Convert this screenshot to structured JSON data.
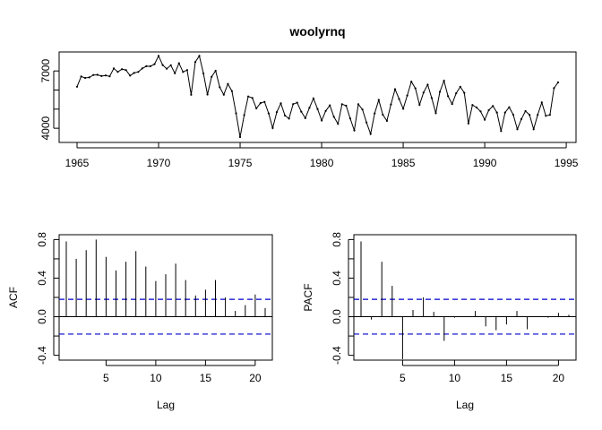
{
  "chart_data": [
    {
      "type": "line",
      "title": "woolyrnq",
      "xlabel": "",
      "ylabel": "",
      "xlim": [
        1965,
        1994.5
      ],
      "ylim": [
        3350,
        7900
      ],
      "x_ticks": [
        "1965",
        "1970",
        "1975",
        "1980",
        "1985",
        "1990",
        "1995"
      ],
      "y_ticks": [
        "4000",
        "7000"
      ],
      "grid": false,
      "legend": "none",
      "color": "#000000",
      "x_start": 1965,
      "frequency": 4,
      "values": [
        6172,
        6709,
        6633,
        6660,
        6786,
        6800,
        6730,
        6765,
        6720,
        7133,
        6946,
        7095,
        7047,
        6757,
        6898,
        6949,
        7131,
        7249,
        7245,
        7354,
        7788,
        7309,
        7118,
        7294,
        6876,
        7402,
        6948,
        7045,
        5750,
        7468,
        7789,
        6868,
        5765,
        6693,
        7010,
        6144,
        5755,
        6318,
        5946,
        4779,
        3537,
        4686,
        5664,
        5582,
        5037,
        5314,
        5380,
        4775,
        4013,
        4845,
        5305,
        4664,
        4505,
        5262,
        5339,
        4871,
        4527,
        5067,
        5566,
        5006,
        4407,
        4908,
        5200,
        4600,
        4228,
        5260,
        5180,
        4515,
        3886,
        5255,
        4982,
        4300,
        3700,
        4775,
        5478,
        4712,
        4386,
        5245,
        6041,
        5530,
        5019,
        5713,
        6441,
        6089,
        5227,
        5869,
        6280,
        5585,
        4786,
        5906,
        6487,
        5682,
        5269,
        5832,
        6168,
        5857,
        4245,
        5216,
        5085,
        4878,
        4447,
        4943,
        5167,
        4821,
        3852,
        4821,
        5098,
        4712,
        3950,
        4480,
        4900,
        4700,
        3950,
        4700,
        5350,
        4650,
        4700,
        6100,
        6400
      ]
    },
    {
      "type": "bar",
      "xlabel": "Lag",
      "ylabel": "ACF",
      "xlim": [
        1,
        21
      ],
      "ylim": [
        -0.45,
        0.85
      ],
      "x_ticks": [
        "5",
        "10",
        "15",
        "20"
      ],
      "y_ticks": [
        "-0.4",
        "0.0",
        "0.4",
        "0.8"
      ],
      "lags": [
        1,
        2,
        3,
        4,
        5,
        6,
        7,
        8,
        9,
        10,
        11,
        12,
        13,
        14,
        15,
        16,
        17,
        18,
        19,
        20,
        21
      ],
      "values": [
        0.78,
        0.6,
        0.69,
        0.8,
        0.62,
        0.48,
        0.57,
        0.68,
        0.52,
        0.37,
        0.44,
        0.55,
        0.38,
        0.22,
        0.28,
        0.38,
        0.2,
        0.06,
        0.12,
        0.23,
        0.09
      ],
      "ci": 0.18,
      "ci_color": "#0000CD"
    },
    {
      "type": "bar",
      "xlabel": "Lag",
      "ylabel": "PACF",
      "xlim": [
        1,
        21
      ],
      "ylim": [
        -0.45,
        0.85
      ],
      "x_ticks": [
        "5",
        "10",
        "15",
        "20"
      ],
      "y_ticks": [
        "-0.4",
        "0.0",
        "0.4",
        "0.8"
      ],
      "lags": [
        1,
        2,
        3,
        4,
        5,
        6,
        7,
        8,
        9,
        10,
        11,
        12,
        13,
        14,
        15,
        16,
        17,
        18,
        19,
        20,
        21
      ],
      "values": [
        0.78,
        -0.03,
        0.57,
        0.32,
        -0.44,
        0.07,
        0.2,
        0.05,
        -0.25,
        -0.01,
        0.0,
        0.06,
        -0.1,
        -0.14,
        -0.08,
        0.06,
        -0.13,
        0.0,
        -0.01,
        0.04,
        0.02
      ],
      "ci": 0.18,
      "ci_color": "#0000CD"
    }
  ]
}
